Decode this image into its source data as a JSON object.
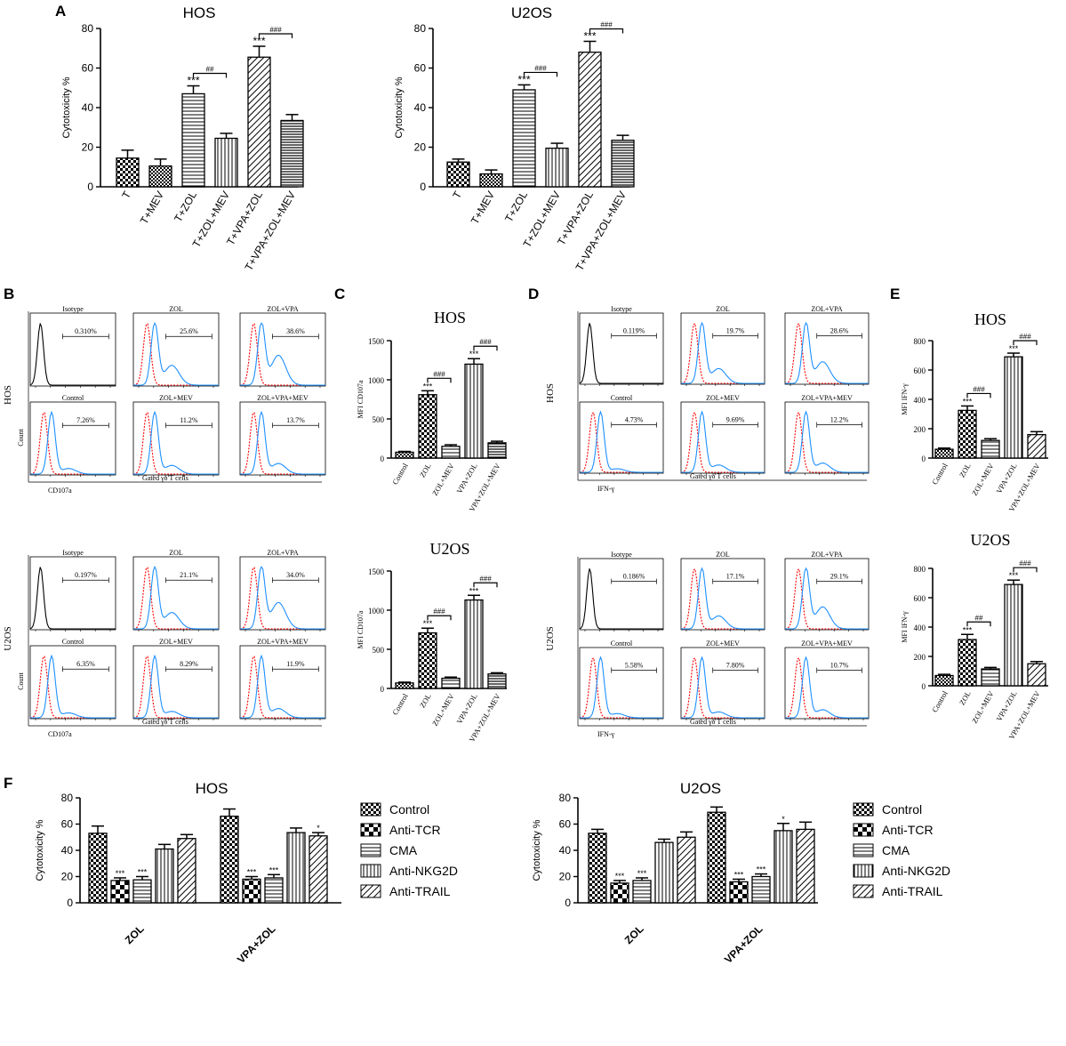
{
  "chart_data": {
    "A": [
      {
        "type": "bar",
        "title": "HOS",
        "ylabel": "Cytotoxicity %",
        "ylim": [
          0,
          80
        ],
        "yticks": [
          0,
          20,
          40,
          60,
          80
        ],
        "categories": [
          "T",
          "T+MEV",
          "T+ZOL",
          "T+ZOL+MEV",
          "T+VPA+ZOL",
          "T+VPA+ZOL+MEV"
        ],
        "values": [
          14.5,
          10.5,
          47,
          24.5,
          65.5,
          33.5
        ],
        "errors": [
          4,
          3.5,
          4,
          2.5,
          5.5,
          3
        ],
        "patterns": [
          "checker",
          "checker-small",
          "hlines",
          "vlines",
          "diag",
          "hlines-dense"
        ],
        "sig": [
          {
            "bar": 2,
            "text": "***"
          },
          {
            "bar": 4,
            "text": "***"
          }
        ],
        "brackets": [
          {
            "from": 2,
            "to": 3,
            "text": "##"
          },
          {
            "from": 4,
            "to": 5,
            "text": "###"
          }
        ]
      },
      {
        "type": "bar",
        "title": "U2OS",
        "ylabel": "Cytotoxicity %",
        "ylim": [
          0,
          80
        ],
        "yticks": [
          0,
          20,
          40,
          60,
          80
        ],
        "categories": [
          "T",
          "T+MEV",
          "T+ZOL",
          "T+ZOL+MEV",
          "T+VPA+ZOL",
          "T+VPA+ZOL+MEV"
        ],
        "values": [
          12.5,
          6.5,
          49,
          19.5,
          68,
          23.5
        ],
        "errors": [
          1.5,
          2,
          2.5,
          2.5,
          5.5,
          2.5
        ],
        "patterns": [
          "checker",
          "checker-small",
          "hlines",
          "vlines",
          "diag",
          "hlines-dense"
        ],
        "sig": [
          {
            "bar": 2,
            "text": "***"
          },
          {
            "bar": 4,
            "text": "***"
          }
        ],
        "brackets": [
          {
            "from": 2,
            "to": 3,
            "text": "###"
          },
          {
            "from": 4,
            "to": 5,
            "text": "###"
          }
        ]
      }
    ],
    "C": [
      {
        "type": "bar",
        "title": "HOS",
        "ylabel": "MFI CD107a",
        "ylim": [
          0,
          1500
        ],
        "yticks": [
          0,
          500,
          1000,
          1500
        ],
        "categories": [
          "Control",
          "ZOL",
          "ZOL+MEV",
          "VPA+ZOL",
          "VPA+ZOL+MEV"
        ],
        "values": [
          75,
          810,
          150,
          1200,
          195
        ],
        "errors": [
          10,
          50,
          20,
          70,
          20
        ],
        "patterns": [
          "checker-small",
          "checker",
          "hlines",
          "vlines",
          "hlines-dense"
        ],
        "sig": [
          {
            "bar": 1,
            "text": "***"
          },
          {
            "bar": 3,
            "text": "***"
          }
        ],
        "brackets": [
          {
            "from": 1,
            "to": 2,
            "text": "###"
          },
          {
            "from": 3,
            "to": 4,
            "text": "###"
          }
        ]
      },
      {
        "type": "bar",
        "title": "U2OS",
        "ylabel": "MFI CD107a",
        "ylim": [
          0,
          1500
        ],
        "yticks": [
          0,
          500,
          1000,
          1500
        ],
        "categories": [
          "Control",
          "ZOL",
          "ZOL+MEV",
          "VPA+ZOL",
          "VPA+ZOL+MEV"
        ],
        "values": [
          70,
          710,
          130,
          1130,
          185
        ],
        "errors": [
          10,
          60,
          15,
          60,
          15
        ],
        "patterns": [
          "checker-small",
          "checker",
          "hlines",
          "vlines",
          "hlines-dense"
        ],
        "sig": [
          {
            "bar": 1,
            "text": "***"
          },
          {
            "bar": 3,
            "text": "***"
          }
        ],
        "brackets": [
          {
            "from": 1,
            "to": 2,
            "text": "###"
          },
          {
            "from": 3,
            "to": 4,
            "text": "###"
          }
        ]
      }
    ],
    "E": [
      {
        "type": "bar",
        "title": "HOS",
        "ylabel": "MFI IFN-γ",
        "ylim": [
          0,
          800
        ],
        "yticks": [
          0,
          200,
          400,
          600,
          800
        ],
        "categories": [
          "Control",
          "ZOL",
          "ZOL+MEV",
          "VPA+ZOL",
          "VPA+ZOL+MEV"
        ],
        "values": [
          60,
          325,
          120,
          690,
          160
        ],
        "errors": [
          8,
          30,
          12,
          25,
          20
        ],
        "patterns": [
          "checker-small",
          "checker",
          "hlines",
          "vlines",
          "diag"
        ],
        "sig": [
          {
            "bar": 1,
            "text": "***"
          },
          {
            "bar": 3,
            "text": "***"
          }
        ],
        "brackets": [
          {
            "from": 1,
            "to": 2,
            "text": "###"
          },
          {
            "from": 3,
            "to": 4,
            "text": "###"
          }
        ]
      },
      {
        "type": "bar",
        "title": "U2OS",
        "ylabel": "MFI IFN-γ",
        "ylim": [
          0,
          800
        ],
        "yticks": [
          0,
          200,
          400,
          600,
          800
        ],
        "categories": [
          "Control",
          "ZOL",
          "ZOL+MEV",
          "VPA+ZOL",
          "VPA+ZOL+MEV"
        ],
        "values": [
          70,
          315,
          115,
          690,
          150
        ],
        "errors": [
          8,
          35,
          10,
          30,
          15
        ],
        "patterns": [
          "checker-small",
          "checker",
          "hlines",
          "vlines",
          "diag"
        ],
        "sig": [
          {
            "bar": 1,
            "text": "***"
          },
          {
            "bar": 3,
            "text": "***"
          }
        ],
        "brackets": [
          {
            "from": 1,
            "to": 2,
            "text": "##"
          },
          {
            "from": 3,
            "to": 4,
            "text": "###"
          }
        ]
      }
    ],
    "F": [
      {
        "type": "bar",
        "title": "HOS",
        "ylabel": "Cytotoxicity %",
        "ylim": [
          0,
          80
        ],
        "yticks": [
          0,
          20,
          40,
          60,
          80
        ],
        "categories": [
          "ZOL",
          "VPA+ZOL"
        ],
        "series": [
          {
            "name": "Control",
            "pattern": "checker",
            "values": [
              53,
              66
            ],
            "errors": [
              5.5,
              5.5
            ]
          },
          {
            "name": "Anti-TCR",
            "pattern": "checker-big",
            "values": [
              17,
              18
            ],
            "errors": [
              2,
              2
            ]
          },
          {
            "name": "CMA",
            "pattern": "hlines",
            "values": [
              17.5,
              19
            ],
            "errors": [
              2.5,
              2.5
            ]
          },
          {
            "name": "Anti-NKG2D",
            "pattern": "vlines",
            "values": [
              41,
              53.5
            ],
            "errors": [
              3.5,
              3.5
            ]
          },
          {
            "name": "Anti-TRAIL",
            "pattern": "diag",
            "values": [
              49,
              51
            ],
            "errors": [
              3,
              2.5
            ]
          }
        ],
        "sig": [
          {
            "group": 0,
            "series": 1,
            "text": "***"
          },
          {
            "group": 0,
            "series": 2,
            "text": "***"
          },
          {
            "group": 1,
            "series": 1,
            "text": "***"
          },
          {
            "group": 1,
            "series": 2,
            "text": "***"
          },
          {
            "group": 1,
            "series": 4,
            "text": "*"
          }
        ]
      },
      {
        "type": "bar",
        "title": "U2OS",
        "ylabel": "Cytotoxicity %",
        "ylim": [
          0,
          80
        ],
        "yticks": [
          0,
          20,
          40,
          60,
          80
        ],
        "categories": [
          "ZOL",
          "VPA+ZOL"
        ],
        "series": [
          {
            "name": "Control",
            "pattern": "checker",
            "values": [
              53,
              69
            ],
            "errors": [
              3,
              4
            ]
          },
          {
            "name": "Anti-TCR",
            "pattern": "checker-big",
            "values": [
              15,
              16
            ],
            "errors": [
              2,
              2
            ]
          },
          {
            "name": "CMA",
            "pattern": "hlines",
            "values": [
              17,
              20
            ],
            "errors": [
              2,
              2
            ]
          },
          {
            "name": "Anti-NKG2D",
            "pattern": "vlines",
            "values": [
              46,
              55
            ],
            "errors": [
              2.5,
              5.5
            ]
          },
          {
            "name": "Anti-TRAIL",
            "pattern": "diag",
            "values": [
              50,
              56
            ],
            "errors": [
              4,
              5.5
            ]
          }
        ],
        "sig": [
          {
            "group": 0,
            "series": 1,
            "text": "***"
          },
          {
            "group": 0,
            "series": 2,
            "text": "***"
          },
          {
            "group": 1,
            "series": 1,
            "text": "***"
          },
          {
            "group": 1,
            "series": 2,
            "text": "***"
          },
          {
            "group": 1,
            "series": 3,
            "text": "*"
          }
        ]
      }
    ]
  },
  "flow": {
    "B": {
      "xlabel": "CD107a",
      "gate": "Gated γδ T cells",
      "ylabel": "Count",
      "rows": [
        {
          "name": "HOS",
          "top": [
            {
              "label": "Isotype",
              "pct": "0.310%"
            },
            {
              "label": "ZOL",
              "pct": "25.6%"
            },
            {
              "label": "ZOL+VPA",
              "pct": "38.6%"
            }
          ],
          "bottom": [
            {
              "label": "Control",
              "pct": "7.26%"
            },
            {
              "label": "ZOL+MEV",
              "pct": "11.2%"
            },
            {
              "label": "ZOL+VPA+MEV",
              "pct": "13.7%"
            }
          ]
        },
        {
          "name": "U2OS",
          "top": [
            {
              "label": "Isotype",
              "pct": "0.197%"
            },
            {
              "label": "ZOL",
              "pct": "21.1%"
            },
            {
              "label": "ZOL+VPA",
              "pct": "34.0%"
            }
          ],
          "bottom": [
            {
              "label": "Control",
              "pct": "6.35%"
            },
            {
              "label": "ZOL+MEV",
              "pct": "8.29%"
            },
            {
              "label": "ZOL+VPA+MEV",
              "pct": "11.9%"
            }
          ]
        }
      ]
    },
    "D": {
      "xlabel": "IFN-γ",
      "gate": "Gated γδ T cells",
      "ylabel": "Count",
      "rows": [
        {
          "name": "HOS",
          "top": [
            {
              "label": "Isotype",
              "pct": "0.119%"
            },
            {
              "label": "ZOL",
              "pct": "19.7%"
            },
            {
              "label": "ZOL+VPA",
              "pct": "28.6%"
            }
          ],
          "bottom": [
            {
              "label": "Control",
              "pct": "4.73%"
            },
            {
              "label": "ZOL+MEV",
              "pct": "9.69%"
            },
            {
              "label": "ZOL+VPA+MEV",
              "pct": "12.2%"
            }
          ]
        },
        {
          "name": "U2OS",
          "top": [
            {
              "label": "Isotype",
              "pct": "0.186%"
            },
            {
              "label": "ZOL",
              "pct": "17.1%"
            },
            {
              "label": "ZOL+VPA",
              "pct": "29.1%"
            }
          ],
          "bottom": [
            {
              "label": "Control",
              "pct": "5.58%"
            },
            {
              "label": "ZOL+MEV",
              "pct": "7.80%"
            },
            {
              "label": "ZOL+VPA+MEV",
              "pct": "10.7%"
            }
          ]
        }
      ]
    }
  },
  "panel_letters": {
    "A": "A",
    "B": "B",
    "C": "C",
    "D": "D",
    "E": "E",
    "F": "F"
  },
  "colors": {
    "bar_stroke": "#000000",
    "histogram_iso": "#000000",
    "histogram_ctrl": "#ff0000",
    "histogram_treat": "#1e90ff"
  }
}
